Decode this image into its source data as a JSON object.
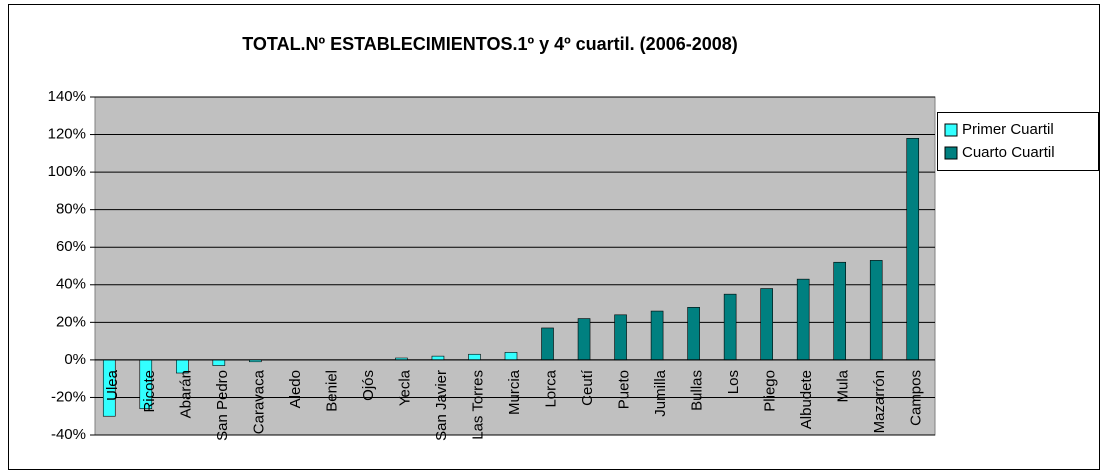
{
  "chart_data": {
    "type": "bar",
    "title": "TOTAL.Nº ESTABLECIMIENTOS.1º y 4º cuartil. (2006-2008)",
    "categories": [
      "Ulea",
      "Ricote",
      "Abarán",
      "San Pedro",
      "Caravaca",
      "Aledo",
      "Beniel",
      "Ojós",
      "Yecla",
      "San Javier",
      "Las Torres",
      "Murcia",
      "Lorca",
      "Ceutí",
      "Pueto",
      "Jumilla",
      "Bullas",
      "Los",
      "Pliego",
      "Albudete",
      "Mula",
      "Mazarrón",
      "Campos"
    ],
    "series": [
      {
        "name": "Primer Cuartil",
        "color": "#33ffff",
        "values": [
          -30,
          -26,
          -7,
          -3,
          -1,
          0,
          0,
          0,
          1,
          2,
          3,
          4,
          null,
          null,
          null,
          null,
          null,
          null,
          null,
          null,
          null,
          null,
          null
        ]
      },
      {
        "name": "Cuarto Cuartil",
        "color": "#008080",
        "values": [
          null,
          null,
          null,
          null,
          null,
          null,
          null,
          null,
          null,
          null,
          null,
          null,
          17,
          22,
          24,
          26,
          28,
          35,
          38,
          43,
          52,
          53,
          118
        ]
      }
    ],
    "ylim": [
      -40,
      140
    ],
    "yticks": [
      {
        "value": -40,
        "label": "-40%"
      },
      {
        "value": -20,
        "label": "-20%"
      },
      {
        "value": 0,
        "label": "0%"
      },
      {
        "value": 20,
        "label": "20%"
      },
      {
        "value": 40,
        "label": "40%"
      },
      {
        "value": 60,
        "label": "60%"
      },
      {
        "value": 80,
        "label": "80%"
      },
      {
        "value": 100,
        "label": "100%"
      },
      {
        "value": 120,
        "label": "120%"
      },
      {
        "value": 140,
        "label": "140%"
      }
    ],
    "grid": true,
    "legend": "right"
  }
}
